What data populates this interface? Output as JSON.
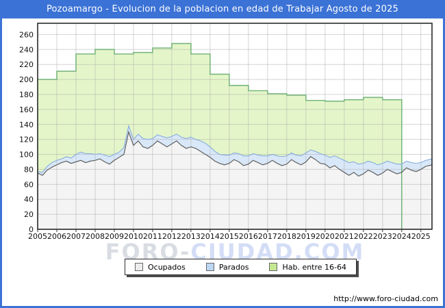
{
  "window": {
    "title": "Pozoamargo - Evolucion de la poblacion en edad de Trabajar Agosto de 2025",
    "url": "http://www.foro-ciudad.com"
  },
  "watermark": {
    "part1": "FORO-",
    "part2": "CIUDAD.COM"
  },
  "colors": {
    "title_bar_bg": "#3b72d6",
    "frame": "#3b72d6",
    "plot_border": "#1a1a1a",
    "grid": "#aaaaaa",
    "tick": "#333333",
    "ocupados_line": "#5f5f5f",
    "ocupados_fill": "#f4f4f4",
    "ocupados_swatch": "#ececec",
    "parados_line": "#8db0de",
    "parados_fill": "#d9e8f8",
    "parados_swatch": "#bdd7f2",
    "hab_line": "#79b77f",
    "hab_fill": "#e4f6c9",
    "hab_swatch": "#c5e892"
  },
  "legend": {
    "items": [
      {
        "label": "Ocupados",
        "swatch_color_key": "ocupados_swatch"
      },
      {
        "label": "Parados",
        "swatch_color_key": "parados_swatch"
      },
      {
        "label": "Hab. entre 16-64",
        "swatch_color_key": "hab_swatch"
      }
    ]
  },
  "chart_data": {
    "type": "area",
    "title": "Pozoamargo - Evolucion de la poblacion en edad de Trabajar Agosto de 2025",
    "legend_position": "bottom",
    "grid": true,
    "x_axis": {
      "start": 2005,
      "end": 2025.58,
      "tick_labels": [
        "2005",
        "2006",
        "2007",
        "2008",
        "2009",
        "2010",
        "2011",
        "2012",
        "2013",
        "2014",
        "2015",
        "2016",
        "2017",
        "2018",
        "2019",
        "2020",
        "2021",
        "2022",
        "2023",
        "2024",
        "2025"
      ]
    },
    "y_axis": {
      "min": 0,
      "max": 275,
      "ticks": [
        0,
        20,
        40,
        60,
        80,
        100,
        120,
        140,
        160,
        180,
        200,
        220,
        240,
        260
      ]
    },
    "series": [
      {
        "name": "Ocupados",
        "style": "area_from_zero",
        "x_start": 2005,
        "x_step": 0.25,
        "x_end": 2025.58,
        "values": [
          75,
          72,
          79,
          83,
          86,
          89,
          91,
          88,
          90,
          92,
          89,
          91,
          92,
          94,
          90,
          87,
          92,
          96,
          100,
          130,
          112,
          118,
          110,
          108,
          112,
          118,
          114,
          110,
          114,
          118,
          112,
          108,
          110,
          108,
          104,
          100,
          96,
          91,
          88,
          86,
          88,
          93,
          90,
          85,
          87,
          92,
          89,
          86,
          88,
          92,
          88,
          85,
          87,
          93,
          89,
          86,
          90,
          97,
          93,
          88,
          87,
          82,
          85,
          80,
          76,
          72,
          76,
          71,
          74,
          79,
          76,
          72,
          75,
          80,
          77,
          74,
          76,
          82,
          79,
          77,
          80,
          84,
          86
        ]
      },
      {
        "name": "Parados",
        "style": "area_stacked_on_ocupados",
        "x_start": 2005,
        "x_step": 0.25,
        "x_end": 2025.58,
        "values": [
          2,
          4,
          5,
          6,
          6,
          5,
          6,
          7,
          10,
          11,
          12,
          10,
          8,
          7,
          9,
          10,
          8,
          7,
          9,
          8,
          8,
          9,
          11,
          12,
          9,
          8,
          10,
          12,
          10,
          9,
          11,
          13,
          13,
          12,
          14,
          15,
          14,
          13,
          12,
          13,
          11,
          9,
          11,
          13,
          11,
          9,
          10,
          12,
          10,
          8,
          10,
          12,
          11,
          9,
          10,
          12,
          12,
          9,
          11,
          13,
          12,
          14,
          13,
          15,
          16,
          17,
          14,
          16,
          14,
          12,
          13,
          14,
          13,
          11,
          12,
          13,
          11,
          9,
          10,
          11,
          9,
          8,
          8
        ]
      },
      {
        "name": "Hab. entre 16-64",
        "style": "step_area_annual",
        "x_start": 2005,
        "x_step": 1,
        "x_end": 2024,
        "values": [
          200,
          211,
          234,
          240,
          234,
          236,
          242,
          248,
          234,
          207,
          192,
          185,
          181,
          179,
          172,
          171,
          173,
          176,
          173
        ]
      }
    ]
  }
}
